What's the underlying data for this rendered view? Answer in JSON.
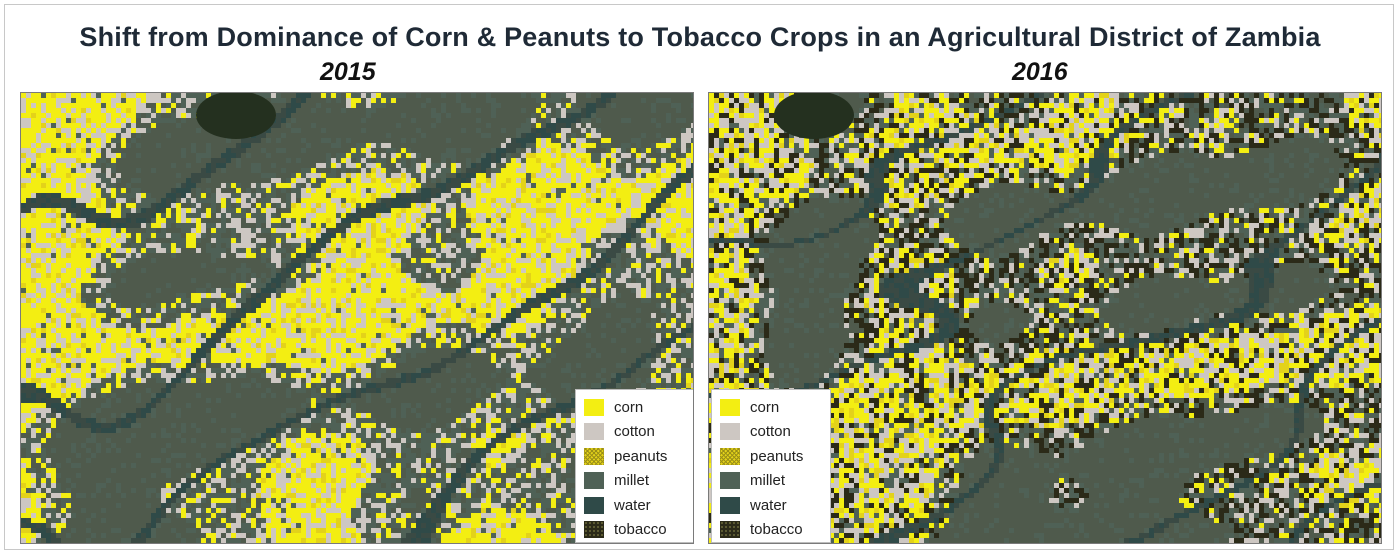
{
  "title": "Shift from Dominance of Corn & Peanuts to Tobacco Crops in an Agricultural District of Zambia",
  "panels": [
    {
      "year": "2015"
    },
    {
      "year": "2016"
    }
  ],
  "legend": [
    {
      "label": "corn",
      "color": "#f3ee12"
    },
    {
      "label": "cotton",
      "color": "#cdc7c2"
    },
    {
      "label": "peanuts",
      "color": "#e3d21a"
    },
    {
      "label": "millet",
      "color": "#4f6156"
    },
    {
      "label": "water",
      "color": "#2f4a48"
    },
    {
      "label": "tobacco",
      "color": "#2b2a18"
    }
  ],
  "colors": {
    "background": "#ffffff",
    "title": "#1f2a36",
    "terrain_dark": "#4f5a4c",
    "terrain_drainage": "#3a4a44"
  }
}
